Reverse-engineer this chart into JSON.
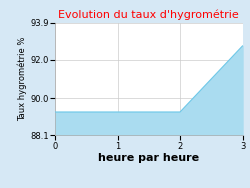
{
  "title": "Evolution du taux d'hygrométrie",
  "title_color": "#ff0000",
  "xlabel": "heure par heure",
  "ylabel": "Taux hygrométrie %",
  "background_color": "#d6e8f5",
  "plot_background_color": "#ffffff",
  "x_data": [
    0,
    2,
    3
  ],
  "y_data": [
    89.3,
    89.3,
    92.7
  ],
  "fill_color": "#aadcf0",
  "line_color": "#6ec8e8",
  "ylim": [
    88.1,
    93.9
  ],
  "xlim": [
    0,
    3
  ],
  "yticks": [
    88.1,
    90.0,
    92.0,
    93.9
  ],
  "xticks": [
    0,
    1,
    2,
    3
  ],
  "grid_color": "#cccccc",
  "title_fontsize": 8,
  "tick_fontsize": 6,
  "xlabel_fontsize": 8,
  "ylabel_fontsize": 6
}
